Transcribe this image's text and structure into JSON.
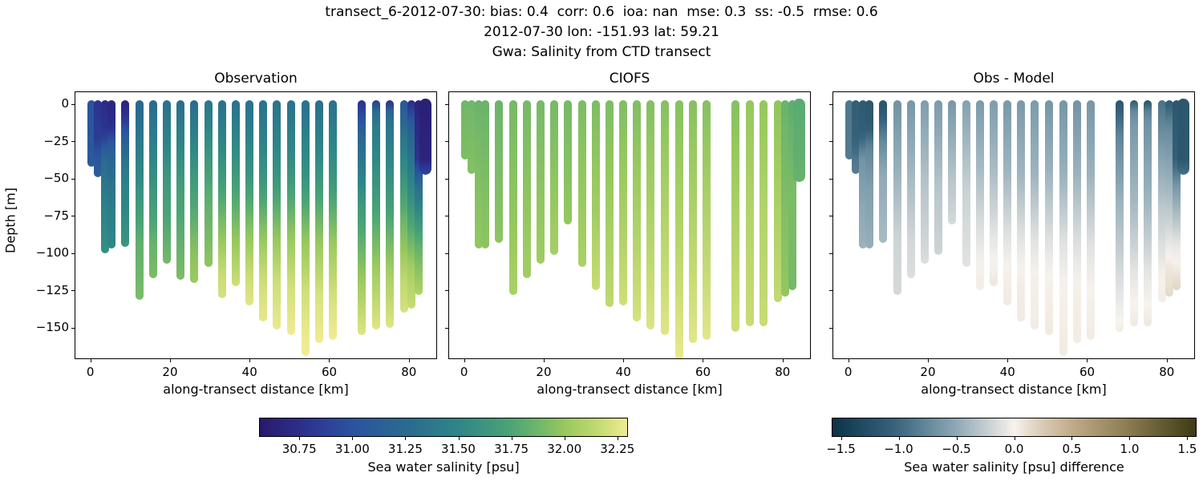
{
  "suptitle": {
    "line1": "transect_6-2012-07-30: bias: 0.4  corr: 0.6  ioa: nan  mse: 0.3  ss: -0.5  rmse: 0.6",
    "line2": "2012-07-30 lon: -151.93 lat: 59.21",
    "line3": "Gwa: Salinity from CTD transect"
  },
  "stats": {
    "bias": 0.4,
    "corr": 0.6,
    "ioa": "nan",
    "mse": 0.3,
    "ss": -0.5,
    "rmse": 0.6,
    "date": "2012-07-30",
    "lon": -151.93,
    "lat": 59.21,
    "station": "Gwa",
    "variable": "Salinity from CTD transect",
    "transect": "transect_6-2012-07-30"
  },
  "panels": [
    {
      "title": "Observation"
    },
    {
      "title": "CIOFS"
    },
    {
      "title": "Obs - Model"
    }
  ],
  "axes": {
    "xlabel": "along-transect distance [km]",
    "ylabel": "Depth [m]",
    "xticks": [
      0,
      20,
      40,
      60,
      80
    ],
    "xtick_labels": [
      "0",
      "20",
      "40",
      "60",
      "80"
    ],
    "yticks": [
      0,
      -25,
      -50,
      -75,
      -100,
      -125,
      -150
    ],
    "ytick_labels": [
      "0",
      "−25",
      "−50",
      "−75",
      "−100",
      "−125",
      "−150"
    ],
    "xlim": [
      -3.8,
      87.3
    ],
    "ylim": [
      -171.5,
      8.2
    ]
  },
  "colorbars": [
    {
      "label": "Sea water salinity [psu]",
      "ticks": [
        30.75,
        31.0,
        31.25,
        31.5,
        31.75,
        32.0,
        32.25
      ],
      "tick_labels": [
        "30.75",
        "31.00",
        "31.25",
        "31.50",
        "31.75",
        "32.00",
        "32.25"
      ],
      "range": [
        30.56,
        32.3
      ],
      "cmap": "haline"
    },
    {
      "label": "Sea water salinity [psu] difference",
      "ticks": [
        -1.5,
        -1.0,
        -0.5,
        0.0,
        0.5,
        1.0,
        1.5
      ],
      "tick_labels": [
        "−1.5",
        "−1.0",
        "−0.5",
        "0.0",
        "0.5",
        "1.0",
        "1.5"
      ],
      "range": [
        -1.58,
        1.58
      ],
      "cmap": "diff"
    }
  ],
  "colors": {
    "haline_stops": [
      [
        0,
        "#2a186c"
      ],
      [
        0.11,
        "#2c2f8c"
      ],
      [
        0.25,
        "#2b52a0"
      ],
      [
        0.4,
        "#2a6b8f"
      ],
      [
        0.54,
        "#2e8688"
      ],
      [
        0.69,
        "#4ca575"
      ],
      [
        0.83,
        "#96c85e"
      ],
      [
        0.93,
        "#c8dc74"
      ],
      [
        1,
        "#f0eb94"
      ]
    ],
    "diff_stops": [
      [
        0,
        "#0b3349"
      ],
      [
        0.18,
        "#3a667f"
      ],
      [
        0.34,
        "#8ea9b6"
      ],
      [
        0.44,
        "#cfd5d6"
      ],
      [
        0.5,
        "#f7f3ee"
      ],
      [
        0.56,
        "#ded2bd"
      ],
      [
        0.66,
        "#c0ab88"
      ],
      [
        0.82,
        "#887a4e"
      ],
      [
        1,
        "#3e3a15"
      ]
    ],
    "axis": "#000000",
    "background": "#ffffff"
  },
  "chart_data": {
    "type": "scatter",
    "description": "Three-panel CTD transect section plot. Each cast is a vertical profile colored by sea water salinity [psu]. Panel 1: observations; panel 2: CIOFS model; panel 3: observation minus model difference. Profiles given as [fraction_of_cast_depth, salinity_psu] control points; difference panel = obs - model at matching depth, truncated to the shallower bottom.",
    "x_units": "km along transect",
    "depth_units": "m",
    "salinity_range": [
      30.56,
      32.3
    ],
    "difference_range": [
      -1.58,
      1.58
    ],
    "casts": [
      {
        "x": 0.3,
        "bottom": -39,
        "model_bottom": -34,
        "obs": [
          [
            0,
            31.0
          ],
          [
            1,
            31.08
          ]
        ],
        "model": [
          [
            0,
            31.88
          ],
          [
            1,
            31.93
          ]
        ]
      },
      {
        "x": 1.8,
        "bottom": -46,
        "model_bottom": -44,
        "obs": [
          [
            0,
            30.78
          ],
          [
            0.5,
            30.85
          ],
          [
            0.78,
            31.05
          ],
          [
            1,
            31.12
          ]
        ],
        "model": [
          [
            0,
            31.88
          ],
          [
            1,
            31.95
          ]
        ]
      },
      {
        "x": 3.6,
        "bottom": -97,
        "model_bottom": -94,
        "obs": [
          [
            0,
            30.72
          ],
          [
            0.22,
            30.8
          ],
          [
            0.38,
            31.25
          ],
          [
            0.7,
            31.45
          ],
          [
            1,
            31.58
          ]
        ],
        "model": [
          [
            0,
            31.86
          ],
          [
            0.6,
            31.95
          ],
          [
            1,
            32.0
          ]
        ]
      },
      {
        "x": 5.3,
        "bottom": -94,
        "obs": [
          [
            0,
            30.68
          ],
          [
            0.18,
            30.74
          ],
          [
            0.32,
            31.12
          ],
          [
            0.6,
            31.35
          ],
          [
            1,
            31.52
          ]
        ],
        "model": [
          [
            0,
            31.86
          ],
          [
            1,
            31.98
          ]
        ]
      },
      {
        "x": 8.8,
        "bottom": -93,
        "model_bottom": -90,
        "obs": [
          [
            0,
            30.66
          ],
          [
            0.08,
            30.72
          ],
          [
            0.28,
            31.15
          ],
          [
            0.5,
            31.42
          ],
          [
            1,
            31.62
          ]
        ],
        "model": [
          [
            0,
            31.86
          ],
          [
            1,
            31.98
          ]
        ]
      },
      {
        "x": 12.3,
        "bottom": -128,
        "model_bottom": -125,
        "obs": [
          [
            0,
            31.22
          ],
          [
            0.35,
            31.5
          ],
          [
            0.7,
            31.82
          ],
          [
            1,
            31.92
          ]
        ],
        "model": [
          [
            0,
            31.9
          ],
          [
            0.65,
            32.0
          ],
          [
            1,
            32.08
          ]
        ]
      },
      {
        "x": 15.8,
        "bottom": -114,
        "obs": [
          [
            0,
            31.25
          ],
          [
            0.4,
            31.55
          ],
          [
            0.8,
            31.85
          ],
          [
            1,
            31.92
          ]
        ],
        "model": [
          [
            0,
            31.9
          ],
          [
            1,
            32.05
          ]
        ]
      },
      {
        "x": 19.2,
        "bottom": -104,
        "obs": [
          [
            0,
            31.3
          ],
          [
            0.5,
            31.65
          ],
          [
            1,
            31.9
          ]
        ],
        "model": [
          [
            0,
            31.9
          ],
          [
            1,
            32.04
          ]
        ]
      },
      {
        "x": 22.6,
        "bottom": -115,
        "model_bottom": -98,
        "obs": [
          [
            0,
            31.28
          ],
          [
            0.5,
            31.7
          ],
          [
            1,
            31.93
          ]
        ],
        "model": [
          [
            0,
            31.9
          ],
          [
            1,
            32.06
          ]
        ]
      },
      {
        "x": 26.1,
        "bottom": -117,
        "model_bottom": -78,
        "obs": [
          [
            0,
            31.26
          ],
          [
            0.45,
            31.68
          ],
          [
            0.85,
            31.97
          ],
          [
            1,
            32.02
          ]
        ],
        "model": [
          [
            0,
            31.9
          ],
          [
            1,
            32.0
          ]
        ]
      },
      {
        "x": 29.6,
        "bottom": -106,
        "obs": [
          [
            0,
            31.35
          ],
          [
            0.55,
            31.8
          ],
          [
            1,
            31.98
          ]
        ],
        "model": [
          [
            0,
            31.92
          ],
          [
            1,
            32.08
          ]
        ]
      },
      {
        "x": 33.2,
        "bottom": -127,
        "model_bottom": -122,
        "obs": [
          [
            0,
            31.3
          ],
          [
            0.35,
            31.62
          ],
          [
            0.68,
            31.98
          ],
          [
            0.88,
            32.18
          ],
          [
            1,
            32.22
          ]
        ],
        "model": [
          [
            0,
            31.92
          ],
          [
            0.6,
            32.05
          ],
          [
            1,
            32.18
          ]
        ]
      },
      {
        "x": 36.6,
        "bottom": -119,
        "model_bottom": -133,
        "obs": [
          [
            0,
            31.32
          ],
          [
            0.4,
            31.65
          ],
          [
            0.75,
            32.0
          ],
          [
            1,
            32.2
          ]
        ],
        "model": [
          [
            0,
            31.92
          ],
          [
            1,
            32.15
          ]
        ]
      },
      {
        "x": 40.0,
        "bottom": -132,
        "obs": [
          [
            0,
            31.3
          ],
          [
            0.35,
            31.6
          ],
          [
            0.65,
            31.98
          ],
          [
            0.85,
            32.18
          ],
          [
            1,
            32.25
          ]
        ],
        "model": [
          [
            0,
            31.93
          ],
          [
            0.6,
            32.08
          ],
          [
            1,
            32.2
          ]
        ]
      },
      {
        "x": 43.4,
        "bottom": -143,
        "obs": [
          [
            0,
            31.3
          ],
          [
            0.35,
            31.62
          ],
          [
            0.62,
            32.0
          ],
          [
            0.82,
            32.2
          ],
          [
            1,
            32.27
          ]
        ],
        "model": [
          [
            0,
            31.93
          ],
          [
            0.55,
            32.08
          ],
          [
            1,
            32.22
          ]
        ]
      },
      {
        "x": 46.9,
        "bottom": -148,
        "obs": [
          [
            0,
            31.32
          ],
          [
            0.32,
            31.6
          ],
          [
            0.6,
            32.0
          ],
          [
            0.8,
            32.2
          ],
          [
            1,
            32.28
          ]
        ],
        "model": [
          [
            0,
            31.94
          ],
          [
            0.5,
            32.08
          ],
          [
            1,
            32.24
          ]
        ]
      },
      {
        "x": 50.4,
        "bottom": -152,
        "obs": [
          [
            0,
            31.3
          ],
          [
            0.3,
            31.6
          ],
          [
            0.58,
            32.0
          ],
          [
            0.78,
            32.2
          ],
          [
            1,
            32.3
          ]
        ],
        "model": [
          [
            0,
            31.95
          ],
          [
            0.5,
            32.1
          ],
          [
            1,
            32.25
          ]
        ]
      },
      {
        "x": 54.0,
        "bottom": -166,
        "model_bottom": -168,
        "obs": [
          [
            0,
            31.3
          ],
          [
            0.3,
            31.6
          ],
          [
            0.55,
            32.0
          ],
          [
            0.75,
            32.2
          ],
          [
            1,
            32.32
          ]
        ],
        "model": [
          [
            0,
            31.95
          ],
          [
            0.5,
            32.1
          ],
          [
            1,
            32.28
          ]
        ]
      },
      {
        "x": 57.5,
        "bottom": -157,
        "obs": [
          [
            0,
            31.28
          ],
          [
            0.3,
            31.6
          ],
          [
            0.58,
            32.0
          ],
          [
            0.8,
            32.22
          ],
          [
            1,
            32.3
          ]
        ],
        "model": [
          [
            0,
            31.95
          ],
          [
            0.5,
            32.1
          ],
          [
            1,
            32.26
          ]
        ]
      },
      {
        "x": 61.0,
        "bottom": -155,
        "obs": [
          [
            0,
            31.3
          ],
          [
            0.32,
            31.62
          ],
          [
            0.6,
            32.02
          ],
          [
            0.82,
            32.22
          ],
          [
            1,
            32.3
          ]
        ],
        "model": [
          [
            0,
            31.95
          ],
          [
            0.5,
            32.1
          ],
          [
            1,
            32.26
          ]
        ]
      },
      {
        "x": 68.2,
        "bottom": -152,
        "model_bottom": -150,
        "obs": [
          [
            0,
            30.75
          ],
          [
            0.15,
            31.2
          ],
          [
            0.45,
            31.65
          ],
          [
            0.75,
            32.0
          ],
          [
            1,
            32.25
          ]
        ],
        "model": [
          [
            0,
            31.95
          ],
          [
            0.5,
            32.08
          ],
          [
            1,
            32.2
          ]
        ]
      },
      {
        "x": 71.7,
        "bottom": -148,
        "model_bottom": -146,
        "obs": [
          [
            0,
            30.85
          ],
          [
            0.06,
            31.35
          ],
          [
            0.45,
            31.7
          ],
          [
            0.75,
            32.05
          ],
          [
            1,
            32.25
          ]
        ],
        "model": [
          [
            0,
            32.0
          ],
          [
            0.5,
            32.1
          ],
          [
            1,
            32.18
          ]
        ]
      },
      {
        "x": 75.2,
        "bottom": -147,
        "model_bottom": -146,
        "obs": [
          [
            0,
            30.75
          ],
          [
            0.06,
            31.3
          ],
          [
            0.45,
            31.68
          ],
          [
            0.75,
            32.05
          ],
          [
            1,
            32.25
          ]
        ],
        "model": [
          [
            0,
            32.0
          ],
          [
            0.5,
            32.1
          ],
          [
            1,
            32.18
          ]
        ]
      },
      {
        "x": 78.8,
        "bottom": -137,
        "model_bottom": -130,
        "obs": [
          [
            0,
            31.05
          ],
          [
            0.25,
            31.45
          ],
          [
            0.55,
            31.85
          ],
          [
            0.85,
            32.15
          ],
          [
            1,
            32.22
          ]
        ],
        "model": [
          [
            0,
            31.98
          ],
          [
            1,
            32.16
          ]
        ]
      },
      {
        "x": 80.6,
        "bottom": -134,
        "model_bottom": -126,
        "obs": [
          [
            0,
            30.72
          ],
          [
            0.12,
            31.12
          ],
          [
            0.5,
            31.62
          ],
          [
            0.8,
            32.05
          ],
          [
            1,
            32.18
          ]
        ],
        "model": [
          [
            0,
            31.86
          ],
          [
            1,
            32.0
          ]
        ]
      },
      {
        "x": 82.4,
        "bottom": -125,
        "model_bottom": -122,
        "obs": [
          [
            0,
            30.65
          ],
          [
            0.3,
            30.78
          ],
          [
            0.45,
            31.3
          ],
          [
            0.72,
            31.8
          ],
          [
            1,
            32.1
          ]
        ],
        "model": [
          [
            0,
            31.82
          ],
          [
            0.5,
            31.92
          ],
          [
            1,
            31.9
          ]
        ]
      },
      {
        "x": 84.2,
        "bottom": -43,
        "model_bottom": -48,
        "wide": true,
        "obs": [
          [
            0,
            30.62
          ],
          [
            0.8,
            30.66
          ],
          [
            1,
            30.92
          ]
        ],
        "model": [
          [
            0,
            31.8
          ],
          [
            1,
            31.85
          ]
        ]
      }
    ]
  }
}
